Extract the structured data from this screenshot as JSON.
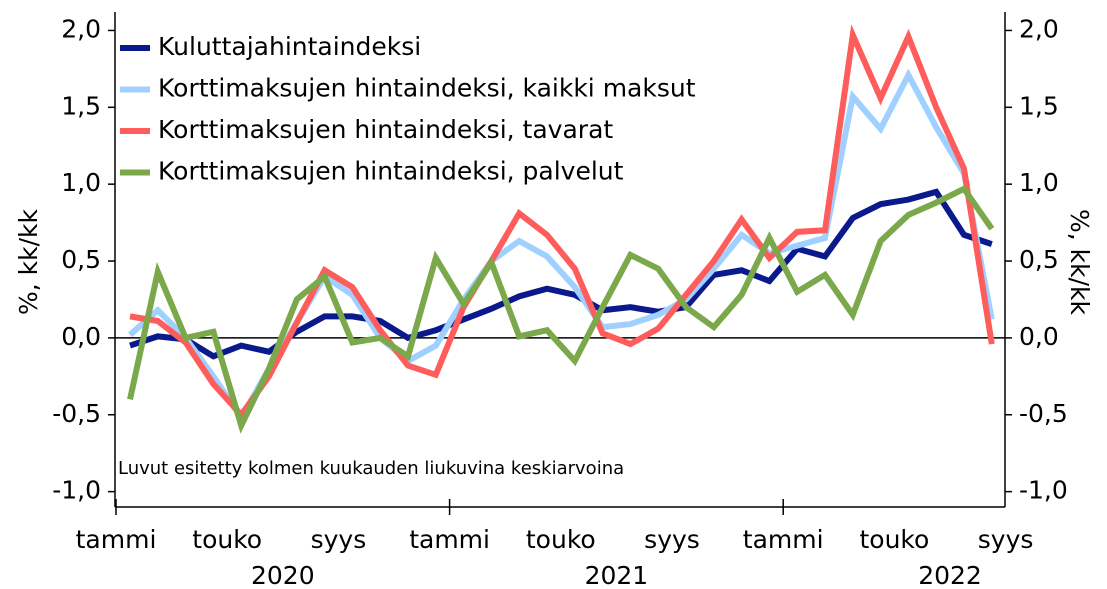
{
  "chart_data": {
    "type": "line",
    "ylabel": "%, kk/kk",
    "y2label": "%, kk/kk",
    "annotation": "Luvut esitetty kolmen kuukauden liukuvina keskiarvoina",
    "categories": [
      "tammi",
      null,
      null,
      null,
      "touko",
      null,
      null,
      null,
      "syys",
      null,
      null,
      null,
      "tammi",
      null,
      null,
      null,
      "touko",
      null,
      null,
      null,
      "syys",
      null,
      null,
      null,
      "tammi",
      null,
      null,
      null,
      "touko",
      null,
      null,
      null,
      "syys"
    ],
    "years": [
      "2020",
      "2021",
      "2022"
    ],
    "legend": "upper left",
    "ylim": [
      -1.1,
      2.12
    ],
    "yticks": [
      {
        "value": -1.0,
        "label": "-1,0"
      },
      {
        "value": -0.5,
        "label": "-0,5"
      },
      {
        "value": 0,
        "label": "0,0"
      },
      {
        "value": 0.5,
        "label": "0,5"
      },
      {
        "value": 1.0,
        "label": "1,0"
      },
      {
        "value": 1.5,
        "label": "1,5"
      },
      {
        "value": 2.0,
        "label": "2,0"
      }
    ],
    "y2lim": [
      -1.1,
      2.12
    ],
    "y2ticks": [
      {
        "value": -1.0,
        "label": "-1,0"
      },
      {
        "value": -0.5,
        "label": "-0,5"
      },
      {
        "value": 0,
        "label": "0,0"
      },
      {
        "value": 0.5,
        "label": "0,5"
      },
      {
        "value": 1.0,
        "label": "1,0"
      },
      {
        "value": 1.5,
        "label": "1,5"
      },
      {
        "value": 2.0,
        "label": "2,0"
      }
    ],
    "series": [
      {
        "name": "Kuluttajahintaindeksi",
        "color": "#0a1a8c",
        "values": [
          -0.05,
          0.01,
          -0.01,
          -0.12,
          -0.05,
          -0.09,
          0.04,
          0.14,
          0.14,
          0.11,
          0.0,
          0.05,
          0.12,
          0.19,
          0.27,
          0.32,
          0.28,
          0.18,
          0.2,
          0.17,
          0.2,
          0.41,
          0.44,
          0.37,
          0.58,
          0.53,
          0.78,
          0.87,
          0.9,
          0.95,
          0.67,
          0.61,
          null
        ]
      },
      {
        "name": "Korttimaksujen hintaindeksi, kaikki maksut",
        "color": "#9fd0ff",
        "values": [
          0.02,
          0.18,
          0.0,
          -0.25,
          -0.52,
          -0.2,
          0.1,
          0.4,
          0.28,
          0.0,
          -0.15,
          -0.05,
          0.25,
          0.5,
          0.63,
          0.53,
          0.33,
          0.07,
          0.09,
          0.15,
          0.25,
          0.45,
          0.67,
          0.55,
          0.6,
          0.65,
          1.57,
          1.36,
          1.71,
          1.37,
          1.07,
          0.12,
          null
        ]
      },
      {
        "name": "Korttimaksujen hintaindeksi, tavarat",
        "color": "#ff5c5c",
        "values": [
          0.14,
          0.11,
          -0.03,
          -0.3,
          -0.5,
          -0.25,
          0.1,
          0.44,
          0.33,
          0.05,
          -0.18,
          -0.24,
          0.2,
          0.5,
          0.81,
          0.67,
          0.45,
          0.03,
          -0.04,
          0.06,
          0.28,
          0.5,
          0.77,
          0.52,
          0.69,
          0.7,
          1.97,
          1.56,
          1.96,
          1.5,
          1.1,
          -0.04,
          null
        ]
      },
      {
        "name": "Korttimaksujen hintaindeksi, palvelut",
        "color": "#7aa84a",
        "values": [
          -0.4,
          0.43,
          0.0,
          0.04,
          -0.57,
          -0.2,
          0.25,
          0.4,
          -0.03,
          0.0,
          -0.12,
          0.52,
          0.22,
          0.49,
          0.01,
          0.05,
          -0.15,
          0.2,
          0.54,
          0.45,
          0.2,
          0.07,
          0.28,
          0.65,
          0.3,
          0.41,
          0.15,
          0.63,
          0.8,
          0.88,
          0.97,
          0.71,
          null
        ]
      }
    ]
  }
}
